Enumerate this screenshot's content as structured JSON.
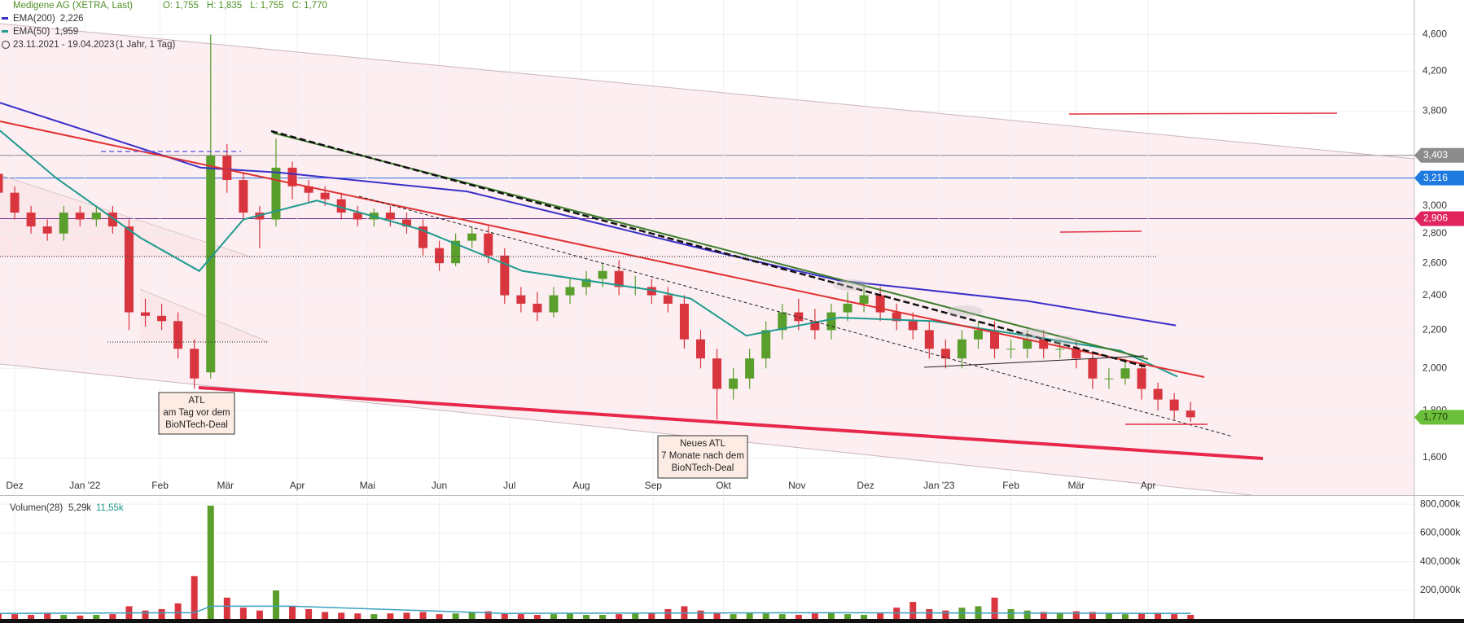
{
  "chart_data": {
    "type": "candlestick",
    "title": "Medigene AG (XETRA, Last)",
    "quote": [
      {
        "name": "O:",
        "value": 1.755,
        "label": "1,755"
      },
      {
        "name": "H:",
        "value": 1.835,
        "label": "1,835"
      },
      {
        "name": "L:",
        "value": 1.755,
        "label": "1,755"
      },
      {
        "name": "C:",
        "value": 1.77,
        "label": "1,770"
      }
    ],
    "period": "23.11.2021 - 19.04.2023",
    "period_note": "(1 Jahr, 1 Tag)",
    "log_scale": true,
    "grid": true,
    "xlim": [
      -0.9,
      85.7
    ],
    "xticks": [
      {
        "value": 0,
        "label": "Dez"
      },
      {
        "value": 4.3,
        "label": "Jan '22"
      },
      {
        "value": 8.9,
        "label": "Feb"
      },
      {
        "value": 12.9,
        "label": "Mär"
      },
      {
        "value": 17.3,
        "label": "Apr"
      },
      {
        "value": 21.6,
        "label": "Mai"
      },
      {
        "value": 26.0,
        "label": "Jun"
      },
      {
        "value": 30.3,
        "label": "Jul"
      },
      {
        "value": 34.7,
        "label": "Aug"
      },
      {
        "value": 39.1,
        "label": "Sep"
      },
      {
        "value": 43.4,
        "label": "Okt"
      },
      {
        "value": 47.9,
        "label": "Nov"
      },
      {
        "value": 52.1,
        "label": "Dez"
      },
      {
        "value": 56.6,
        "label": "Jan '23"
      },
      {
        "value": 61.0,
        "label": "Feb"
      },
      {
        "value": 65.0,
        "label": "Mär"
      },
      {
        "value": 69.4,
        "label": "Apr"
      }
    ],
    "ylim": [
      1.458,
      5.015
    ],
    "yticks": [
      {
        "value": 1.6,
        "label": "1,600"
      },
      {
        "value": 1.8,
        "label": "1,800"
      },
      {
        "value": 2.0,
        "label": "2,000"
      },
      {
        "value": 2.2,
        "label": "2,200"
      },
      {
        "value": 2.4,
        "label": "2,400"
      },
      {
        "value": 2.6,
        "label": "2,600"
      },
      {
        "value": 2.8,
        "label": "2,800"
      },
      {
        "value": 3.0,
        "label": "3,000"
      },
      {
        "value": 3.8,
        "label": "3,800"
      },
      {
        "value": 4.2,
        "label": "4,200"
      },
      {
        "value": 4.6,
        "label": "4,600"
      }
    ],
    "candles": {
      "x": [
        -1,
        0,
        1,
        2,
        3,
        4,
        5,
        6,
        7,
        8,
        9,
        10,
        11,
        12,
        13,
        14,
        15,
        16,
        17,
        18,
        19,
        20,
        21,
        22,
        23,
        24,
        25,
        26,
        27,
        28,
        29,
        30,
        31,
        32,
        33,
        34,
        35,
        36,
        37,
        38,
        39,
        40,
        41,
        42,
        43,
        44,
        45,
        46,
        47,
        48,
        49,
        50,
        51,
        52,
        53,
        54,
        55,
        56,
        57,
        58,
        59,
        60,
        61,
        62,
        63,
        64,
        65,
        66,
        67,
        68,
        69,
        70,
        71,
        72
      ],
      "open": [
        3.25,
        3.1,
        2.95,
        2.85,
        2.8,
        2.95,
        2.9,
        2.95,
        2.85,
        2.3,
        2.28,
        2.25,
        2.1,
        1.98,
        3.4,
        3.2,
        2.95,
        2.9,
        3.3,
        3.15,
        3.1,
        3.05,
        2.95,
        2.9,
        2.95,
        2.9,
        2.85,
        2.7,
        2.6,
        2.75,
        2.8,
        2.65,
        2.4,
        2.35,
        2.3,
        2.4,
        2.45,
        2.5,
        2.55,
        2.45,
        2.45,
        2.4,
        2.35,
        2.15,
        2.05,
        1.9,
        1.95,
        2.05,
        2.2,
        2.3,
        2.25,
        2.2,
        2.3,
        2.35,
        2.4,
        2.3,
        2.25,
        2.2,
        2.1,
        2.05,
        2.15,
        2.2,
        2.1,
        2.1,
        2.15,
        2.1,
        2.1,
        2.05,
        1.95,
        1.95,
        2.0,
        1.9,
        1.85,
        1.8
      ],
      "high": [
        3.3,
        3.15,
        3.0,
        2.9,
        3.0,
        3.0,
        3.0,
        3.0,
        2.9,
        2.38,
        2.35,
        2.3,
        2.15,
        4.6,
        3.5,
        3.25,
        3.0,
        3.55,
        3.35,
        3.2,
        3.15,
        3.1,
        3.0,
        2.98,
        3.0,
        2.95,
        2.9,
        2.75,
        2.8,
        2.85,
        2.85,
        2.7,
        2.45,
        2.42,
        2.45,
        2.5,
        2.55,
        2.6,
        2.62,
        2.52,
        2.5,
        2.45,
        2.4,
        2.2,
        2.1,
        2.0,
        2.1,
        2.25,
        2.35,
        2.38,
        2.32,
        2.35,
        2.42,
        2.47,
        2.45,
        2.35,
        2.3,
        2.25,
        2.15,
        2.2,
        2.25,
        2.25,
        2.15,
        2.2,
        2.2,
        2.15,
        2.15,
        2.08,
        2.0,
        2.05,
        2.03,
        1.93,
        1.88,
        1.84
      ],
      "low": [
        3.05,
        2.9,
        2.8,
        2.75,
        2.75,
        2.85,
        2.85,
        2.8,
        2.2,
        2.22,
        2.2,
        2.05,
        1.9,
        1.95,
        3.1,
        2.9,
        2.7,
        2.85,
        3.05,
        3.02,
        3.0,
        2.9,
        2.85,
        2.85,
        2.85,
        2.8,
        2.65,
        2.55,
        2.58,
        2.7,
        2.6,
        2.35,
        2.3,
        2.25,
        2.27,
        2.35,
        2.4,
        2.45,
        2.4,
        2.4,
        2.35,
        2.3,
        2.1,
        2.0,
        1.76,
        1.85,
        1.9,
        2.0,
        2.15,
        2.2,
        2.15,
        2.15,
        2.25,
        2.3,
        2.25,
        2.2,
        2.15,
        2.05,
        2.0,
        2.0,
        2.1,
        2.05,
        2.05,
        2.05,
        2.05,
        2.05,
        2.0,
        1.9,
        1.9,
        1.92,
        1.85,
        1.8,
        1.76,
        1.75
      ],
      "close": [
        3.1,
        2.95,
        2.85,
        2.8,
        2.95,
        2.9,
        2.95,
        2.85,
        2.3,
        2.28,
        2.25,
        2.1,
        1.95,
        3.4,
        3.2,
        2.95,
        2.9,
        3.3,
        3.15,
        3.1,
        3.05,
        2.95,
        2.9,
        2.95,
        2.9,
        2.85,
        2.7,
        2.6,
        2.75,
        2.8,
        2.65,
        2.4,
        2.35,
        2.3,
        2.4,
        2.45,
        2.5,
        2.55,
        2.45,
        2.45,
        2.4,
        2.35,
        2.15,
        2.05,
        1.9,
        1.95,
        2.05,
        2.2,
        2.3,
        2.25,
        2.2,
        2.3,
        2.35,
        2.4,
        2.3,
        2.25,
        2.2,
        2.1,
        2.05,
        2.15,
        2.2,
        2.1,
        2.1,
        2.15,
        2.1,
        2.1,
        2.05,
        1.95,
        1.95,
        2.0,
        1.9,
        1.85,
        1.8,
        1.77
      ],
      "up_color": "#5a9e2c",
      "down_color": "#d8353e"
    },
    "series": [
      {
        "name": "EMA(200)",
        "color": "#3a2fc9",
        "latest": {
          "value": 2.226,
          "label": "2,226"
        },
        "x": [
          -0.9,
          11.4,
          16.2,
          27.7,
          42.5,
          50.5,
          62.0,
          71.1
        ],
        "values": [
          3.88,
          3.3,
          3.26,
          3.11,
          2.685,
          2.49,
          2.366,
          2.226
        ]
      },
      {
        "name": "EMA(50)",
        "color": "#1f9a8e",
        "latest": {
          "value": 1.959,
          "label": "1,959"
        },
        "x": [
          -0.9,
          2.5,
          7.7,
          11.3,
          14.0,
          18.5,
          24.8,
          31.1,
          39.1,
          41.4,
          44.8,
          50.5,
          56.2,
          62.0,
          67.7,
          71.2
        ],
        "values": [
          3.62,
          3.22,
          2.77,
          2.55,
          2.9,
          3.04,
          2.83,
          2.55,
          2.43,
          2.38,
          2.17,
          2.27,
          2.25,
          2.17,
          2.09,
          1.959
        ]
      }
    ],
    "price_lines": [
      {
        "value": 3.403,
        "label": "3,403",
        "color": "#8a8a8a",
        "tag_color": "#8c8c8c"
      },
      {
        "value": 3.216,
        "label": "3,216",
        "color": "#2a6fd6",
        "tag_color": "#1f7ae0"
      },
      {
        "value": 2.906,
        "label": "2,906",
        "color": "#6a2a8a",
        "tag_color": "#e0245e"
      }
    ],
    "last_price": {
      "value": 1.77,
      "label": "1,770",
      "color": "#6cbf3a"
    },
    "annotations": [
      {
        "lines": [
          "ATL",
          "am Tag  vor dem",
          "BioNTech-Deal"
        ]
      },
      {
        "lines": [
          "Neues ATL",
          "7 Monate nach dem",
          "BioNTech-Deal"
        ]
      }
    ],
    "volume": {
      "name": "Volumen(28)",
      "stat1": "5,29k",
      "stat2": "11,55k",
      "ylim": [
        0,
        846
      ],
      "yticks": [
        {
          "value": 200,
          "label": "200,000k"
        },
        {
          "value": 400,
          "label": "400,000k"
        },
        {
          "value": 600,
          "label": "600,000k"
        },
        {
          "value": 800,
          "label": "800,000k"
        }
      ],
      "values": [
        40,
        35,
        30,
        45,
        30,
        25,
        30,
        35,
        90,
        60,
        70,
        110,
        300,
        790,
        150,
        80,
        60,
        200,
        90,
        70,
        50,
        45,
        40,
        35,
        40,
        45,
        50,
        35,
        40,
        45,
        55,
        40,
        35,
        30,
        35,
        40,
        30,
        30,
        35,
        40,
        45,
        70,
        90,
        60,
        40,
        35,
        45,
        40,
        35,
        30,
        40,
        45,
        35,
        30,
        40,
        80,
        120,
        70,
        60,
        80,
        90,
        150,
        70,
        60,
        50,
        45,
        55,
        50,
        40,
        35,
        40,
        45,
        35,
        30
      ],
      "avg_color": "#3aa0c0",
      "avg_x": [
        -0.9,
        11.0,
        12.0,
        17.0,
        30.0,
        50.0,
        72.0
      ],
      "avg_values": [
        40,
        45,
        90,
        90,
        40,
        45,
        40
      ]
    }
  }
}
